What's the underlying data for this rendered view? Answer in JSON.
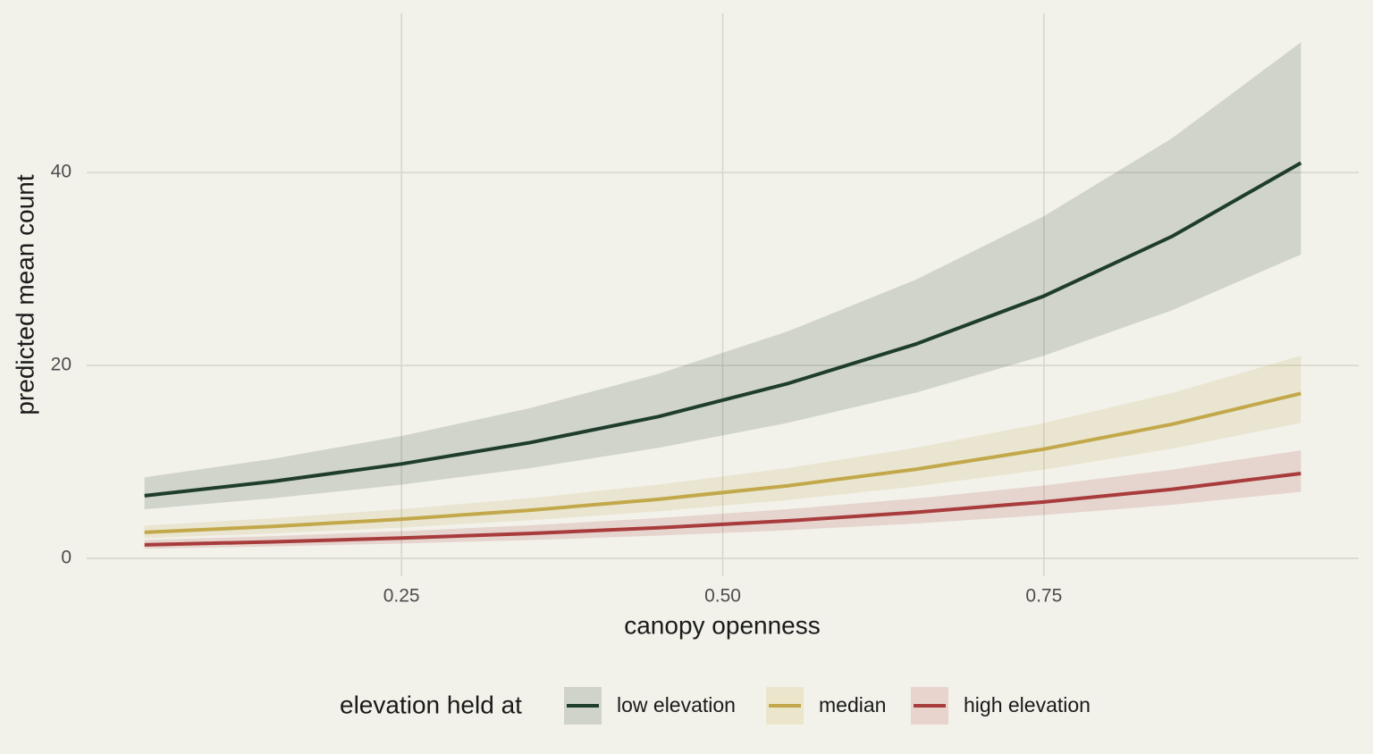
{
  "chart_data": {
    "type": "line",
    "x_label": "canopy openness",
    "y_label": "predicted mean count",
    "legend_title": "elevation held at",
    "legend_position": "bottom",
    "x": [
      0.05,
      0.15,
      0.25,
      0.35,
      0.45,
      0.55,
      0.65,
      0.75,
      0.85,
      0.95
    ],
    "series": [
      {
        "name": "low elevation",
        "color": "#1f3d2b",
        "band_color": "#cfd3c9",
        "values": [
          6.5,
          7.98,
          9.79,
          12.0,
          14.7,
          18.1,
          22.2,
          27.2,
          33.4,
          41.0
        ],
        "lower": [
          5.1,
          6.24,
          7.64,
          9.36,
          11.46,
          14.03,
          17.17,
          21.02,
          25.74,
          31.5
        ],
        "upper": [
          8.4,
          10.32,
          12.68,
          15.57,
          19.13,
          23.5,
          28.87,
          35.47,
          43.58,
          53.5
        ]
      },
      {
        "name": "median",
        "color": "#c2a84a",
        "band_color": "#ebe5cc",
        "values": [
          2.7,
          3.31,
          4.07,
          4.99,
          6.13,
          7.52,
          9.23,
          11.33,
          13.91,
          17.1
        ],
        "lower": [
          2.1,
          2.59,
          3.2,
          3.96,
          4.89,
          6.04,
          7.46,
          9.21,
          11.38,
          14.06
        ],
        "upper": [
          3.4,
          4.16,
          5.1,
          6.24,
          7.64,
          9.35,
          11.45,
          14.02,
          17.16,
          21.0
        ]
      },
      {
        "name": "high elevation",
        "color": "#a83c3c",
        "band_color": "#e8d4cd",
        "values": [
          1.4,
          1.72,
          2.11,
          2.58,
          3.17,
          3.89,
          4.77,
          5.85,
          7.17,
          8.8
        ],
        "lower": [
          1.0,
          1.24,
          1.54,
          1.9,
          2.36,
          2.92,
          3.62,
          4.49,
          5.56,
          6.9
        ],
        "upper": [
          1.9,
          2.31,
          2.82,
          3.43,
          4.18,
          5.09,
          6.2,
          7.55,
          9.2,
          11.2
        ]
      }
    ],
    "xlim": [
      0.005,
      0.995
    ],
    "xticks": [
      {
        "value": 0.25,
        "label": "0.25"
      },
      {
        "value": 0.5,
        "label": "0.50"
      },
      {
        "value": 0.75,
        "label": "0.75"
      }
    ],
    "ylim": [
      -1.85,
      56.5
    ],
    "yticks": [
      0,
      20,
      40
    ],
    "grid": true
  }
}
